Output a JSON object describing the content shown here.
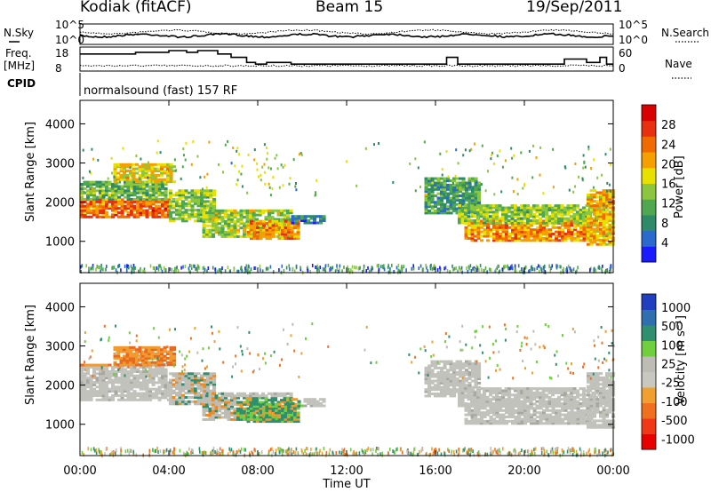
{
  "header": {
    "station": "Kodiak (fitACF)",
    "beam": "Beam 15",
    "date": "19/Sep/2011"
  },
  "colors": {
    "power_scale": [
      "#1a1aff",
      "#2a6acc",
      "#2f8a6a",
      "#4fa84f",
      "#8cc63f",
      "#e8e000",
      "#f5a000",
      "#f06a00",
      "#e83010",
      "#d80000"
    ],
    "velocity_scale": [
      "#1f3fbf",
      "#2f6faf",
      "#2f8f6f",
      "#6fcf3f",
      "#bdbdb5",
      "#c8c8c0",
      "#f0a030",
      "#f07020",
      "#f03818",
      "#e80000"
    ]
  },
  "chart_data": [
    {
      "name": "noise-panel",
      "type": "line",
      "labels_left": {
        "title": "N.Sky",
        "ticks": [
          "10^5",
          "10^0"
        ]
      },
      "labels_right": {
        "title": "N.Search",
        "ticks": [
          "10^5",
          "10^0"
        ]
      }
    },
    {
      "name": "freq-panel",
      "type": "line",
      "labels_left": {
        "title": "Freq.",
        "unit": "[MHz]",
        "ticks": [
          "18",
          "8"
        ]
      },
      "labels_right": {
        "title": "Nave",
        "ticks": [
          "60",
          "0"
        ]
      },
      "freq_steps": [
        [
          0,
          16
        ],
        [
          2.5,
          17
        ],
        [
          4,
          18
        ],
        [
          4.8,
          17
        ],
        [
          5.3,
          18
        ],
        [
          6.2,
          16
        ],
        [
          6.8,
          14
        ],
        [
          7.5,
          11
        ],
        [
          7.9,
          10
        ],
        [
          8.4,
          11
        ],
        [
          9.5,
          10
        ],
        [
          12,
          10
        ],
        [
          16,
          10
        ],
        [
          16.5,
          14
        ],
        [
          17,
          10
        ],
        [
          21.8,
          13
        ],
        [
          22.8,
          11
        ],
        [
          23.4,
          14
        ],
        [
          23.7,
          10
        ],
        [
          24,
          10
        ]
      ]
    },
    {
      "name": "cpid",
      "type": "table",
      "label": "CPID",
      "text": "normalsound (fast) 157 RF"
    },
    {
      "name": "power-panel",
      "type": "heatmap",
      "ylabel": "Slant Range [km]",
      "yticks": [
        "1000",
        "2000",
        "3000",
        "4000"
      ],
      "ylim": [
        200,
        4600
      ],
      "colorbar": {
        "label": "Power [dB]",
        "ticks": [
          "4",
          "8",
          "12",
          "16",
          "20",
          "24",
          "28"
        ],
        "range": [
          0,
          32
        ]
      },
      "blobs": [
        {
          "t0": 0.0,
          "t1": 4.0,
          "r0": 1600,
          "r1": 2050,
          "v": 24
        },
        {
          "t0": 0.0,
          "t1": 3.8,
          "r0": 2050,
          "r1": 2500,
          "v": 12
        },
        {
          "t0": 1.5,
          "t1": 4.2,
          "r0": 2500,
          "r1": 2950,
          "v": 18
        },
        {
          "t0": 4.0,
          "t1": 6.0,
          "r0": 1500,
          "r1": 2300,
          "v": 14
        },
        {
          "t0": 5.5,
          "t1": 9.5,
          "r0": 1100,
          "r1": 1800,
          "v": 15
        },
        {
          "t0": 7.5,
          "t1": 9.8,
          "r0": 1050,
          "r1": 1500,
          "v": 22
        },
        {
          "t0": 9.5,
          "t1": 11.0,
          "r0": 1450,
          "r1": 1650,
          "v": 6
        },
        {
          "t0": 15.5,
          "t1": 18.0,
          "r0": 1700,
          "r1": 2600,
          "v": 10
        },
        {
          "t0": 17.3,
          "t1": 23.0,
          "r0": 1000,
          "r1": 1550,
          "v": 22
        },
        {
          "t0": 17.0,
          "t1": 23.6,
          "r0": 1450,
          "r1": 1900,
          "v": 14
        },
        {
          "t0": 22.8,
          "t1": 24.0,
          "r0": 900,
          "r1": 2300,
          "v": 20
        }
      ]
    },
    {
      "name": "velocity-panel",
      "type": "heatmap",
      "ylabel": "Slant Range [km]",
      "yticks": [
        "1000",
        "2000",
        "3000",
        "4000"
      ],
      "ylim": [
        200,
        4600
      ],
      "colorbar": {
        "label": "Velocity [m s⁻¹]",
        "ticks": [
          "1000",
          "500",
          "100",
          "25",
          "-25",
          "-100",
          "-500",
          "-1000"
        ]
      },
      "xlabel": "Time UT",
      "xticks": [
        "00:00",
        "04:00",
        "08:00",
        "12:00",
        "16:00",
        "20:00",
        "00:00"
      ],
      "xlim": [
        0,
        24
      ]
    }
  ]
}
